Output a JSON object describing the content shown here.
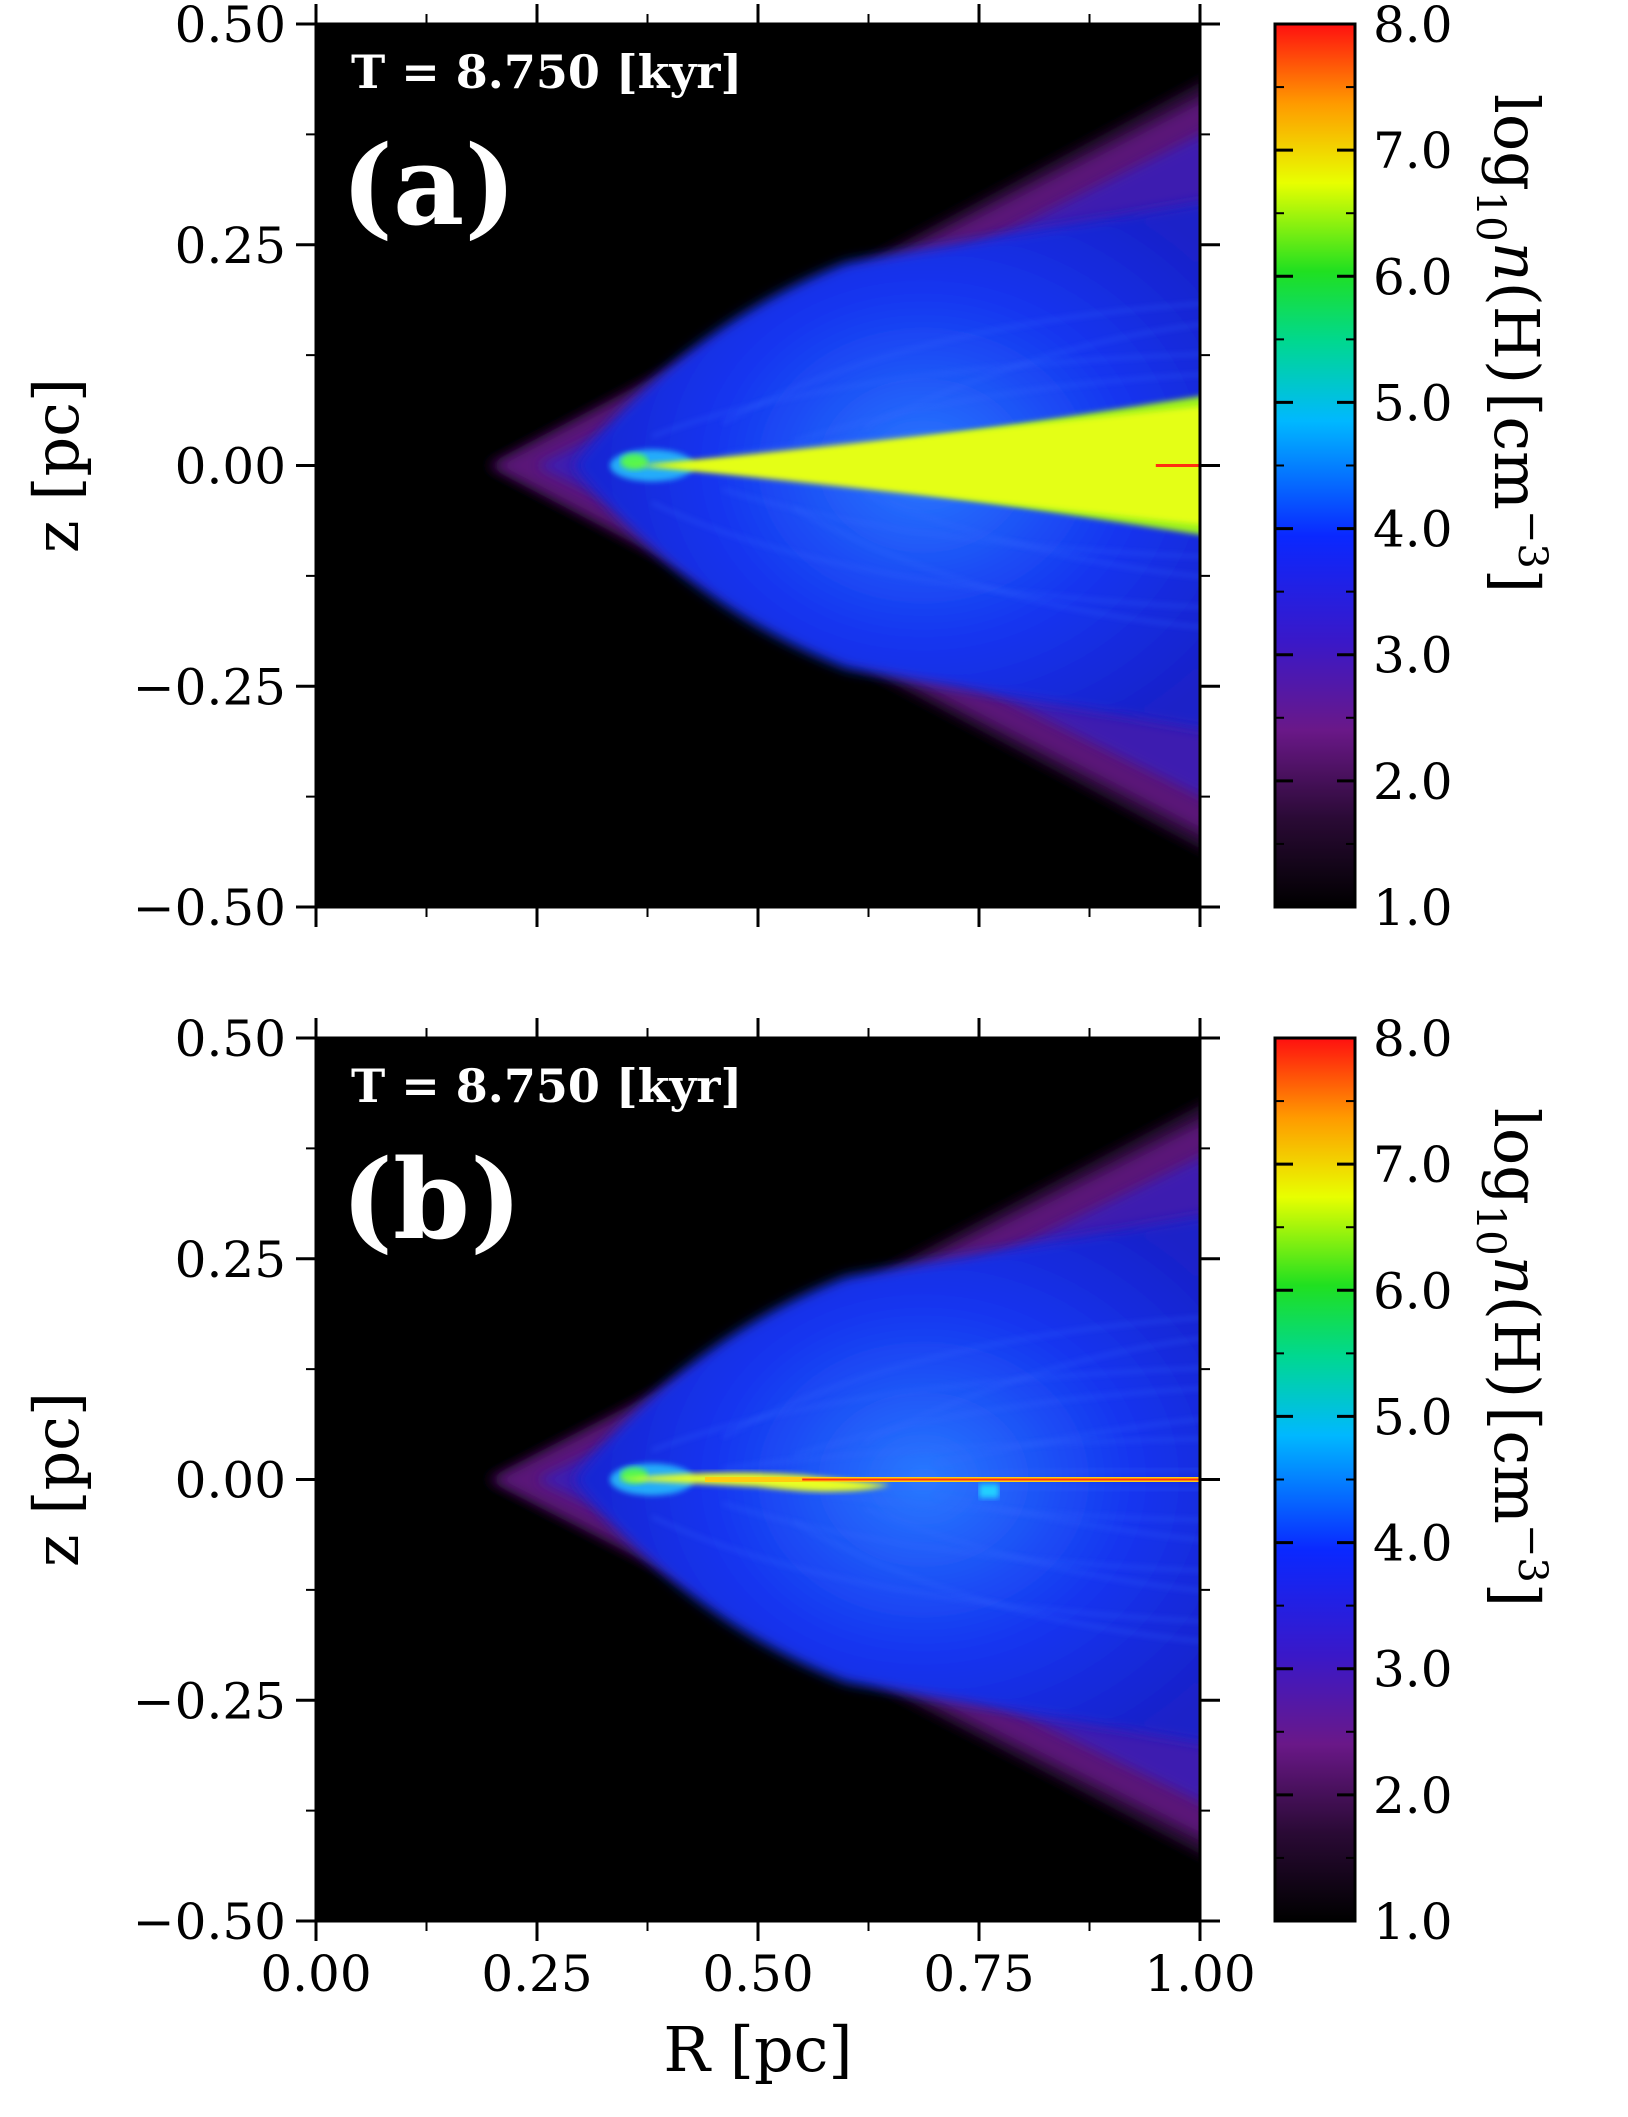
{
  "chart_data": [
    {
      "type": "heatmap",
      "panel": "(a)",
      "annotation": "T =  8.750 [kyr]",
      "xlabel": "",
      "ylabel": "z [pc]",
      "xlim": [
        0.0,
        1.0
      ],
      "ylim": [
        -0.5,
        0.5
      ],
      "xticks": [
        "0.00",
        "0.25",
        "0.50",
        "0.75",
        "1.00"
      ],
      "xtick_labels_visible": false,
      "yticks": [
        "0.50",
        "0.25",
        "0.00",
        "−0.25",
        "−0.50"
      ],
      "colorbar": {
        "label": "log10 n(H) [cm^-3]",
        "label_parts": {
          "log": "log",
          "sub": "10",
          "var": "n",
          "paren": "(H)",
          "unit": "[cm",
          "exp": "−3",
          "close": "]"
        },
        "range": [
          1.0,
          8.0
        ],
        "ticks": [
          "8.0",
          "7.0",
          "6.0",
          "5.0",
          "4.0",
          "3.0",
          "2.0",
          "1.0"
        ]
      },
      "structure": {
        "cone_apex_R": 0.2,
        "cone_outer_halfwidth_at_R1": 0.42,
        "blue_zone_apex_R": 0.3,
        "dense_midplane_disk": {
          "R_start": 0.34,
          "halfwidth_at_R1": 0.08,
          "log_density": 6.8
        }
      }
    },
    {
      "type": "heatmap",
      "panel": "(b)",
      "annotation": "T =  8.750 [kyr]",
      "xlabel": "R [pc]",
      "ylabel": "z [pc]",
      "xlim": [
        0.0,
        1.0
      ],
      "ylim": [
        -0.5,
        0.5
      ],
      "xticks": [
        "0.00",
        "0.25",
        "0.50",
        "0.75",
        "1.00"
      ],
      "xtick_labels_visible": true,
      "yticks": [
        "0.50",
        "0.25",
        "0.00",
        "−0.25",
        "−0.50"
      ],
      "colorbar": {
        "label": "log10 n(H) [cm^-3]",
        "label_parts": {
          "log": "log",
          "sub": "10",
          "var": "n",
          "paren": "(H)",
          "unit": "[cm",
          "exp": "−3",
          "close": "]"
        },
        "range": [
          1.0,
          8.0
        ],
        "ticks": [
          "8.0",
          "7.0",
          "6.0",
          "5.0",
          "4.0",
          "3.0",
          "2.0",
          "1.0"
        ]
      },
      "structure": {
        "cone_apex_R": 0.2,
        "cone_outer_halfwidth_at_R1": 0.41,
        "blue_zone_apex_R": 0.3,
        "thin_midplane_sheet": {
          "R_start": 0.34,
          "R_end": 1.0,
          "log_density": 7.5
        }
      }
    }
  ],
  "colors": {
    "background": "#000000",
    "colormap": [
      "#000000",
      "#3a0a4a",
      "#7a1a9a",
      "#4a20d0",
      "#1030ff",
      "#00c8ff",
      "#00e050",
      "#ffff00",
      "#ff9000",
      "#ff1010"
    ]
  }
}
